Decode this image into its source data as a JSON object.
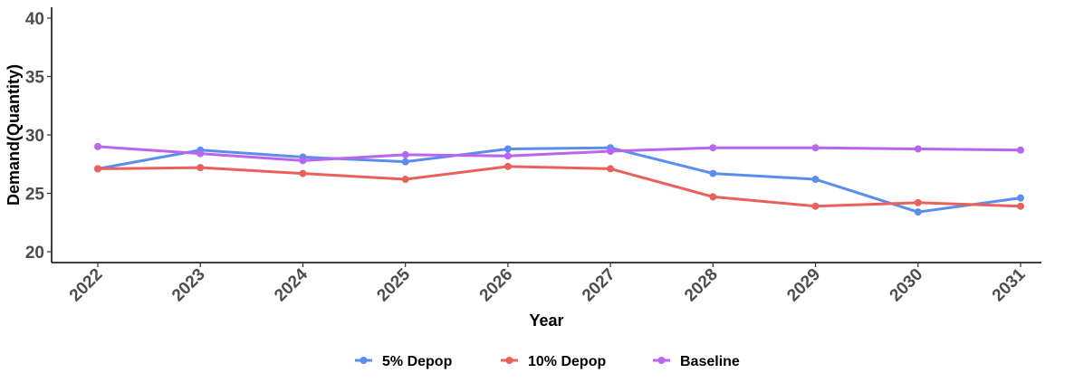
{
  "chart_data": {
    "type": "line",
    "title": "",
    "xlabel": "Year",
    "ylabel": "Demand(Quantity)",
    "categories": [
      "2022",
      "2023",
      "2024",
      "2025",
      "2026",
      "2027",
      "2028",
      "2029",
      "2030",
      "2031"
    ],
    "ylim": [
      20,
      40
    ],
    "yticks": [
      20,
      25,
      30,
      35,
      40
    ],
    "grid": false,
    "legend_position": "bottom",
    "series": [
      {
        "name": "5% Depop",
        "color": "#5b8def",
        "values": [
          27.1,
          28.7,
          28.1,
          27.7,
          28.8,
          28.9,
          26.7,
          26.2,
          23.4,
          24.6
        ]
      },
      {
        "name": "10% Depop",
        "color": "#ea605b",
        "values": [
          27.1,
          27.2,
          26.7,
          26.2,
          27.3,
          27.1,
          24.7,
          23.9,
          24.2,
          23.9
        ]
      },
      {
        "name": "Baseline",
        "color": "#b866ef",
        "values": [
          29.0,
          28.4,
          27.8,
          28.3,
          28.2,
          28.6,
          28.9,
          28.9,
          28.8,
          28.7
        ]
      }
    ]
  }
}
